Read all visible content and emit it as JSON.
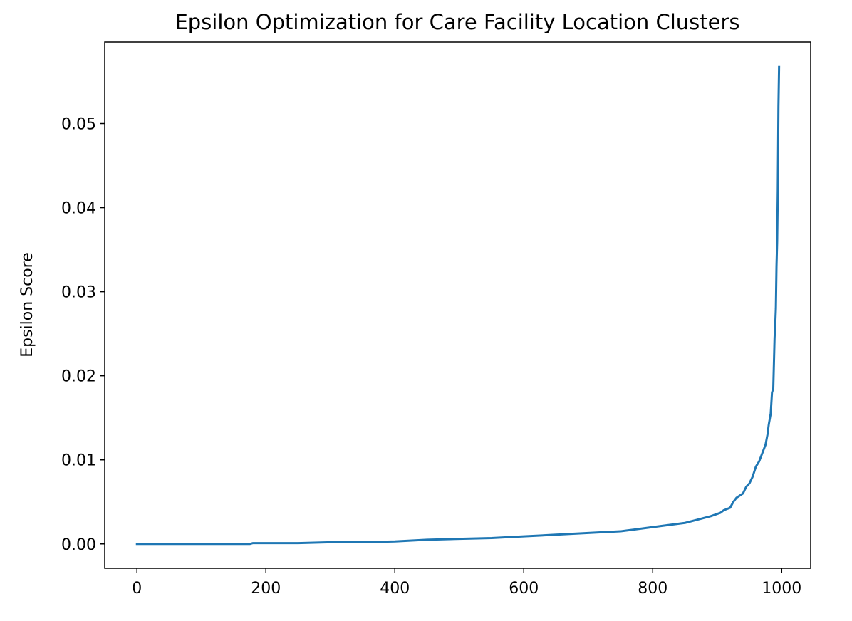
{
  "chart_data": {
    "type": "line",
    "title": "Epsilon Optimization for Care Facility Location Clusters",
    "xlabel": "",
    "ylabel": "Epsilon Score",
    "xlim": [
      -50,
      1045
    ],
    "ylim": [
      -0.0029,
      0.0597
    ],
    "x_ticks": [
      0,
      200,
      400,
      600,
      800,
      1000
    ],
    "x_tick_labels": [
      "0",
      "200",
      "400",
      "600",
      "800",
      "1000"
    ],
    "y_ticks": [
      0.0,
      0.01,
      0.02,
      0.03,
      0.04,
      0.05
    ],
    "y_tick_labels": [
      "0.00",
      "0.01",
      "0.02",
      "0.03",
      "0.04",
      "0.05"
    ],
    "grid": false,
    "colors": {
      "line": "#1f77b4",
      "axes": "#000000",
      "background": "#ffffff"
    },
    "series": [
      {
        "x": [
          0,
          100,
          175,
          180,
          250,
          300,
          350,
          400,
          450,
          500,
          550,
          600,
          650,
          700,
          750,
          760,
          800,
          820,
          850,
          870,
          890,
          905,
          910,
          920,
          925,
          930,
          940,
          945,
          950,
          955,
          960,
          965,
          970,
          975,
          978,
          980,
          983,
          985,
          987,
          989,
          990,
          991,
          992,
          993,
          994,
          995,
          996
        ],
        "y": [
          0.0,
          0.0,
          0.0,
          0.0001,
          0.0001,
          0.0002,
          0.0002,
          0.0003,
          0.0005,
          0.0006,
          0.0007,
          0.0009,
          0.0011,
          0.0013,
          0.0015,
          0.0016,
          0.002,
          0.0022,
          0.0025,
          0.0029,
          0.0033,
          0.0037,
          0.004,
          0.0043,
          0.005,
          0.0055,
          0.006,
          0.0068,
          0.0072,
          0.008,
          0.0092,
          0.0098,
          0.0108,
          0.0118,
          0.013,
          0.0142,
          0.0155,
          0.018,
          0.0185,
          0.0245,
          0.026,
          0.028,
          0.033,
          0.036,
          0.042,
          0.052,
          0.0568
        ]
      }
    ]
  }
}
